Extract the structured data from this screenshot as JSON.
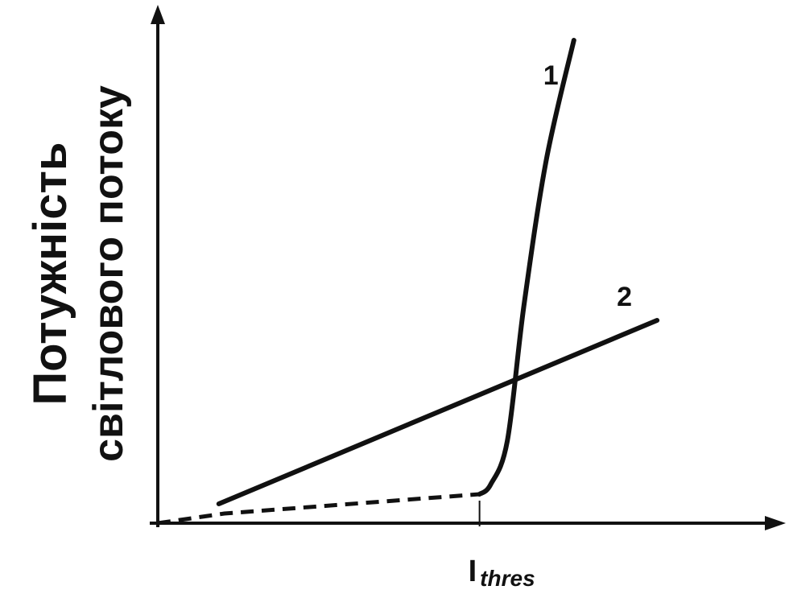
{
  "chart_data": {
    "type": "line",
    "ylabel_lines": [
      "Потужність",
      "світлового потоку"
    ],
    "threshold_label": {
      "main": "I",
      "sub": "thres"
    },
    "series": [
      {
        "name": "1",
        "style": "solid+dashed",
        "color": "#111111",
        "points_dashed": [
          [
            0.0,
            0.0
          ],
          [
            0.12,
            0.02
          ],
          [
            0.58,
            0.06
          ]
        ],
        "points_solid": [
          [
            0.58,
            0.06
          ],
          [
            0.6,
            0.08
          ],
          [
            0.63,
            0.17
          ],
          [
            0.66,
            0.45
          ],
          [
            0.7,
            0.75
          ],
          [
            0.75,
            1.0
          ]
        ]
      },
      {
        "name": "2",
        "style": "solid",
        "color": "#111111",
        "points_solid": [
          [
            0.11,
            0.04
          ],
          [
            0.9,
            0.42
          ]
        ]
      }
    ],
    "threshold_x": 0.58,
    "xlim": [
      0,
      1
    ],
    "ylim": [
      0,
      1
    ],
    "grid": false,
    "legend": "none"
  }
}
